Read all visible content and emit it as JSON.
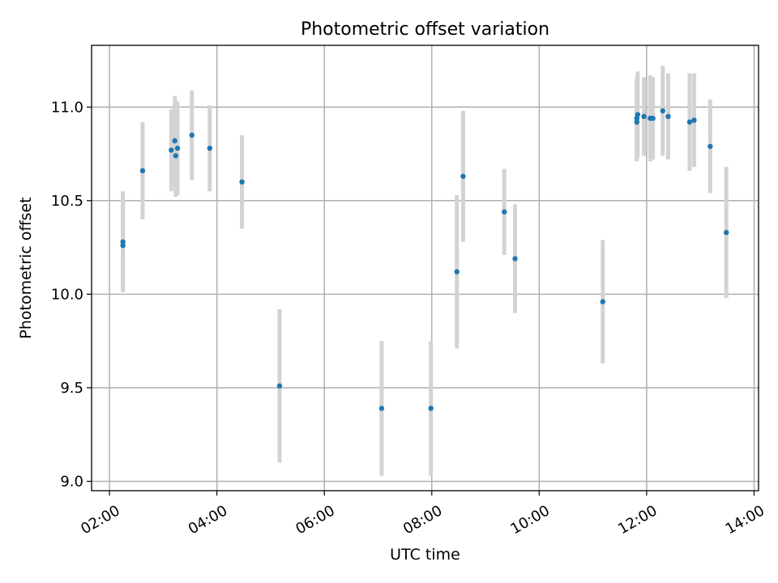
{
  "colors": {
    "marker": "#1f77b4",
    "errorbar": "#d3d3d3",
    "grid": "#b0b0b0"
  },
  "chart_data": {
    "type": "scatter",
    "title": "Photometric offset variation",
    "xlabel": "UTC time",
    "ylabel": "Photometric offset",
    "x_is_time": true,
    "xlim": [
      "01:40",
      "14:05"
    ],
    "ylim": [
      8.95,
      11.33
    ],
    "x_ticks": [
      "02:00",
      "04:00",
      "06:00",
      "08:00",
      "10:00",
      "12:00",
      "14:00"
    ],
    "y_ticks": [
      9.0,
      9.5,
      10.0,
      10.5,
      11.0
    ],
    "y_tick_labels": [
      "9.0",
      "9.5",
      "10.0",
      "10.5",
      "11.0"
    ],
    "grid": true,
    "series": [
      {
        "marker": "circle",
        "error_bars": true,
        "points": [
          {
            "x": "02:15",
            "y": 10.28,
            "err": 0.27
          },
          {
            "x": "02:15",
            "y": 10.26,
            "err": 0.24
          },
          {
            "x": "02:37",
            "y": 10.66,
            "err": 0.26
          },
          {
            "x": "03:09",
            "y": 10.77,
            "err": 0.22
          },
          {
            "x": "03:13",
            "y": 10.82,
            "err": 0.24
          },
          {
            "x": "03:14",
            "y": 10.74,
            "err": 0.22
          },
          {
            "x": "03:16",
            "y": 10.78,
            "err": 0.25
          },
          {
            "x": "03:32",
            "y": 10.85,
            "err": 0.24
          },
          {
            "x": "03:52",
            "y": 10.78,
            "err": 0.23
          },
          {
            "x": "04:28",
            "y": 10.6,
            "err": 0.25
          },
          {
            "x": "05:10",
            "y": 9.51,
            "err": 0.41
          },
          {
            "x": "07:04",
            "y": 9.39,
            "err": 0.36
          },
          {
            "x": "07:59",
            "y": 9.39,
            "err": 0.36
          },
          {
            "x": "08:28",
            "y": 10.12,
            "err": 0.41
          },
          {
            "x": "08:35",
            "y": 10.63,
            "err": 0.35
          },
          {
            "x": "09:21",
            "y": 10.44,
            "err": 0.23
          },
          {
            "x": "09:33",
            "y": 10.19,
            "err": 0.29
          },
          {
            "x": "11:11",
            "y": 9.96,
            "err": 0.33
          },
          {
            "x": "11:49",
            "y": 10.92,
            "err": 0.21
          },
          {
            "x": "11:49",
            "y": 10.94,
            "err": 0.22
          },
          {
            "x": "11:50",
            "y": 10.96,
            "err": 0.23
          },
          {
            "x": "11:57",
            "y": 10.95,
            "err": 0.21
          },
          {
            "x": "12:04",
            "y": 10.94,
            "err": 0.23
          },
          {
            "x": "12:07",
            "y": 10.94,
            "err": 0.22
          },
          {
            "x": "12:18",
            "y": 10.98,
            "err": 0.24
          },
          {
            "x": "12:24",
            "y": 10.95,
            "err": 0.23
          },
          {
            "x": "12:48",
            "y": 10.92,
            "err": 0.26
          },
          {
            "x": "12:53",
            "y": 10.93,
            "err": 0.25
          },
          {
            "x": "13:11",
            "y": 10.79,
            "err": 0.25
          },
          {
            "x": "13:29",
            "y": 10.33,
            "err": 0.35
          }
        ]
      }
    ]
  }
}
